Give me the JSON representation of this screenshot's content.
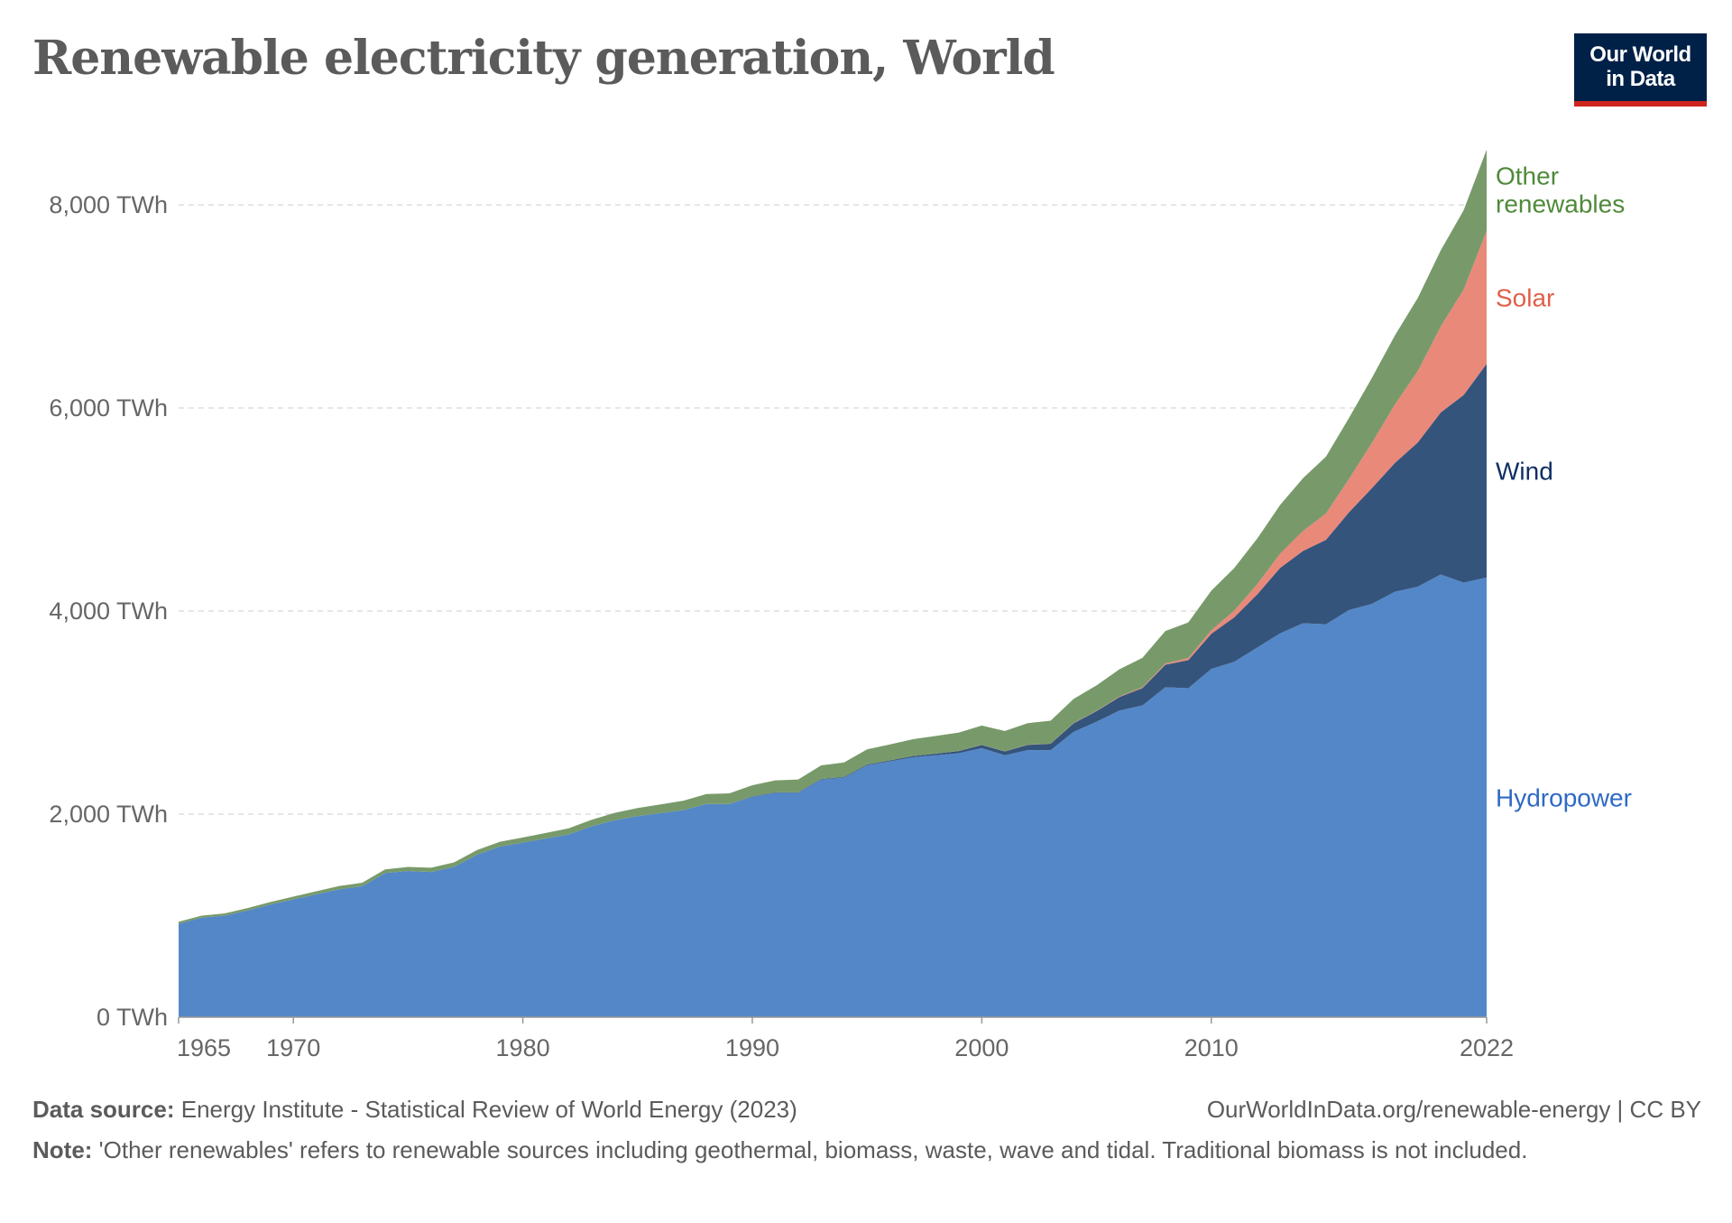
{
  "title": "Renewable electricity generation, World",
  "logo": {
    "line1": "Our World",
    "line2": "in Data"
  },
  "footer": {
    "source_label": "Data source:",
    "source_text": "Energy Institute - Statistical Review of World Energy (2023)",
    "url": "OurWorldInData.org/renewable-energy | CC BY",
    "note_label": "Note:",
    "note_text": "'Other renewables' refers to renewable sources including geothermal, biomass, waste, wave and tidal. Traditional biomass is not included."
  },
  "chart_data": {
    "type": "area",
    "stacked": true,
    "title": "Renewable electricity generation, World",
    "ylim": [
      0,
      8540
    ],
    "grid": true,
    "y_ticks": [
      0,
      2000,
      4000,
      6000,
      8000
    ],
    "y_tick_labels": [
      "0 TWh",
      "2,000 TWh",
      "4,000 TWh",
      "6,000 TWh",
      "8,000 TWh"
    ],
    "x_ticks": [
      1965,
      1970,
      1980,
      1990,
      2000,
      2010,
      2022
    ],
    "x_tick_labels": [
      "1965",
      "1970",
      "1980",
      "1990",
      "2000",
      "2010",
      "2022"
    ],
    "legend_placement": "right, inline labels",
    "x": [
      1965,
      1966,
      1967,
      1968,
      1969,
      1970,
      1971,
      1972,
      1973,
      1974,
      1975,
      1976,
      1977,
      1978,
      1979,
      1980,
      1981,
      1982,
      1983,
      1984,
      1985,
      1986,
      1987,
      1988,
      1989,
      1990,
      1991,
      1992,
      1993,
      1994,
      1995,
      1996,
      1997,
      1998,
      1999,
      2000,
      2001,
      2002,
      2003,
      2004,
      2005,
      2006,
      2007,
      2008,
      2009,
      2010,
      2011,
      2012,
      2013,
      2014,
      2015,
      2016,
      2017,
      2018,
      2019,
      2020,
      2021,
      2022
    ],
    "series": [
      {
        "name": "Hydropower",
        "color": "#5487c7",
        "label_color": "#2f6ac4",
        "values": [
          920,
          980,
          1000,
          1050,
          1110,
          1160,
          1210,
          1260,
          1290,
          1420,
          1440,
          1430,
          1480,
          1600,
          1680,
          1720,
          1760,
          1800,
          1880,
          1940,
          1980,
          2010,
          2040,
          2100,
          2100,
          2170,
          2210,
          2210,
          2340,
          2360,
          2480,
          2520,
          2560,
          2580,
          2600,
          2650,
          2580,
          2630,
          2630,
          2810,
          2910,
          3020,
          3070,
          3250,
          3240,
          3430,
          3500,
          3640,
          3780,
          3880,
          3870,
          4010,
          4070,
          4190,
          4240,
          4360,
          4280,
          4330
        ]
      },
      {
        "name": "Wind",
        "color": "#34547c",
        "label_color": "#102f63",
        "values": [
          0,
          0,
          0,
          0,
          0,
          0,
          0,
          0,
          0,
          0,
          0,
          0,
          0,
          0,
          0,
          0,
          0,
          0,
          0,
          0,
          0,
          0,
          0,
          0,
          0,
          4,
          4,
          5,
          6,
          7,
          8,
          9,
          12,
          16,
          21,
          31,
          38,
          52,
          63,
          85,
          104,
          133,
          171,
          221,
          277,
          346,
          438,
          523,
          645,
          712,
          831,
          962,
          1140,
          1268,
          1420,
          1596,
          1848,
          2105
        ]
      },
      {
        "name": "Solar",
        "color": "#e9897a",
        "label_color": "#e0604a",
        "values": [
          0,
          0,
          0,
          0,
          0,
          0,
          0,
          0,
          0,
          0,
          0,
          0,
          0,
          0,
          0,
          0,
          0,
          0,
          0,
          0,
          0,
          0,
          0,
          0,
          0,
          0,
          0,
          0,
          0,
          0,
          0,
          0,
          0,
          0,
          0,
          1,
          1,
          2,
          2,
          3,
          4,
          6,
          8,
          12,
          21,
          34,
          65,
          100,
          140,
          197,
          260,
          329,
          446,
          575,
          703,
          846,
          1040,
          1310
        ]
      },
      {
        "name": "Other renewables",
        "color": "#789a6a",
        "label_color": "#4f8a3a",
        "values": [
          20,
          20,
          22,
          24,
          25,
          28,
          30,
          32,
          34,
          36,
          40,
          42,
          44,
          46,
          48,
          50,
          55,
          60,
          65,
          72,
          80,
          86,
          92,
          98,
          104,
          110,
          118,
          126,
          134,
          142,
          150,
          158,
          166,
          174,
          182,
          190,
          200,
          212,
          225,
          237,
          250,
          268,
          290,
          320,
          350,
          390,
          420,
          450,
          480,
          520,
          560,
          600,
          640,
          680,
          720,
          750,
          780,
          800
        ]
      }
    ]
  }
}
